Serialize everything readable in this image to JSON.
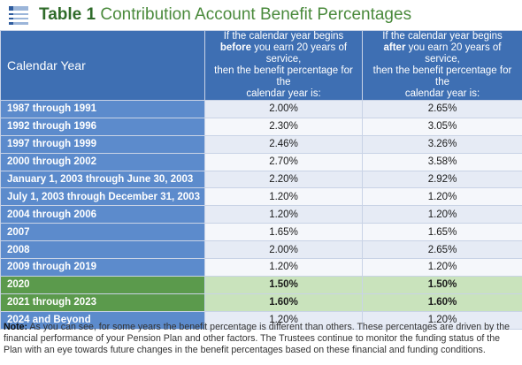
{
  "title": {
    "number": "Table 1",
    "text": "Contribution Account Benefit Percentages"
  },
  "table": {
    "header": {
      "year": "Calendar Year",
      "before": {
        "line1": "If the calendar year begins",
        "bold": "before",
        "line2_rest": " you earn 20 years of service,",
        "line3": "then the benefit percentage for the",
        "line4": "calendar year is:"
      },
      "after": {
        "line1": "If the calendar year begins",
        "bold": "after",
        "line2_rest": " you earn 20 years of service,",
        "line3": "then the benefit percentage for the",
        "line4": "calendar year is:"
      }
    },
    "rows": [
      {
        "year": "1987 through 1991",
        "before": "2.00%",
        "after": "2.65%"
      },
      {
        "year": "1992 through 1996",
        "before": "2.30%",
        "after": "3.05%"
      },
      {
        "year": "1997 through 1999",
        "before": "2.46%",
        "after": "3.26%"
      },
      {
        "year": "2000 through 2002",
        "before": "2.70%",
        "after": "3.58%"
      },
      {
        "year": "January 1, 2003 through June 30, 2003",
        "before": "2.20%",
        "after": "2.92%"
      },
      {
        "year": "July 1, 2003 through December 31, 2003",
        "before": "1.20%",
        "after": "1.20%"
      },
      {
        "year": "2004 through 2006",
        "before": "1.20%",
        "after": "1.20%"
      },
      {
        "year": "2007",
        "before": "1.65%",
        "after": "1.65%"
      },
      {
        "year": "2008",
        "before": "2.00%",
        "after": "2.65%"
      },
      {
        "year": "2009 through 2019",
        "before": "1.20%",
        "after": "1.20%"
      },
      {
        "year": "2020",
        "before": "1.50%",
        "after": "1.50%"
      },
      {
        "year": "2021 through 2023",
        "before": "1.60%",
        "after": "1.60%"
      },
      {
        "year": "2024 and Beyond",
        "before": "1.20%",
        "after": "1.20%"
      }
    ],
    "highlight_color": "#5b9a4c",
    "header_color": "#3e6fb3"
  },
  "note": {
    "label": "Note:",
    "text": " As you can see, for some years the benefit percentage is different than others. These percentages are driven by the financial performance of your Pension Plan and other factors. The Trustees continue to monitor the funding status of the Plan with an eye towards future changes in the benefit percentages based on these financial and funding conditions."
  }
}
